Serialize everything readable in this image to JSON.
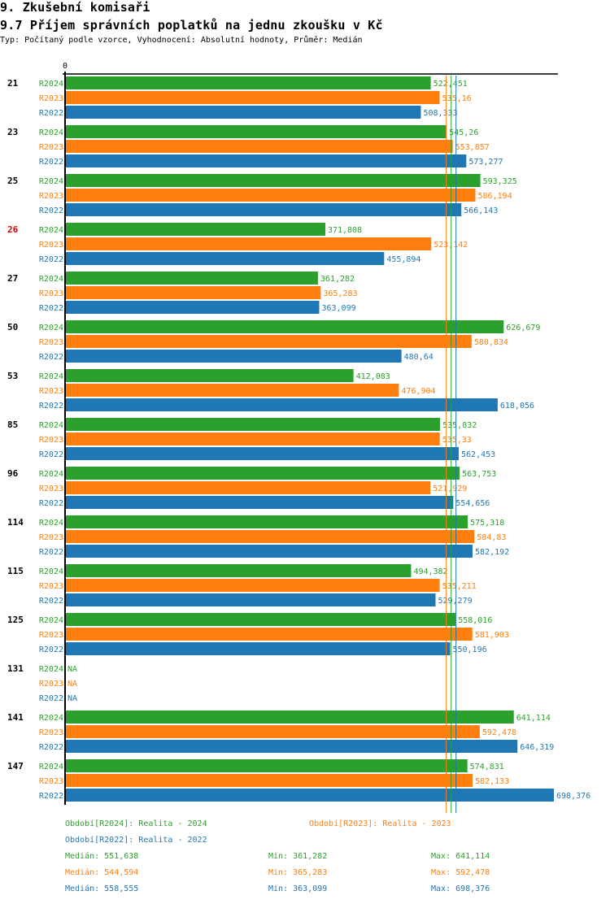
{
  "header": {
    "section": "9. Zkušební komisaři",
    "title": "9.7 Příjem správních poplatků na jednu zkoušku v Kč",
    "subtitle": "Typ: Počítaný podle vzorce, Vyhodnocení: Absolutní hodnoty, Průměr: Medián"
  },
  "colors": {
    "R2024": "#2ca02c",
    "R2023": "#ff7f0e",
    "R2022": "#1f77b4",
    "highlight": "#dd0000",
    "axis": "#000000"
  },
  "chart_data": {
    "type": "bar",
    "orientation": "horizontal",
    "title": "9.7 Příjem správních poplatků na jednu zkoušku v Kč",
    "xlabel": "",
    "ylabel": "",
    "xlim": [
      0,
      698.376
    ],
    "x_tick_labels": [
      "0"
    ],
    "grid": false,
    "series_order": [
      "R2024",
      "R2023",
      "R2022"
    ],
    "categories": [
      "21",
      "23",
      "25",
      "26",
      "27",
      "50",
      "53",
      "85",
      "96",
      "114",
      "115",
      "125",
      "131",
      "141",
      "147"
    ],
    "highlighted_categories": [
      "26"
    ],
    "series": [
      {
        "name": "R2024",
        "labels": [
          "522,451",
          "545,26",
          "593,325",
          "371,808",
          "361,282",
          "626,679",
          "412,083",
          "535,832",
          "563,753",
          "575,318",
          "494,382",
          "558,016",
          "NA",
          "641,114",
          "574,831"
        ],
        "values": [
          522.451,
          545.26,
          593.325,
          371.808,
          361.282,
          626.679,
          412.083,
          535.832,
          563.753,
          575.318,
          494.382,
          558.016,
          null,
          641.114,
          574.831
        ]
      },
      {
        "name": "R2023",
        "labels": [
          "535,16",
          "553,857",
          "586,194",
          "523,142",
          "365,283",
          "580,834",
          "476,904",
          "535,33",
          "521,929",
          "584,83",
          "535,211",
          "581,903",
          "NA",
          "592,478",
          "582,133"
        ],
        "values": [
          535.16,
          553.857,
          586.194,
          523.142,
          365.283,
          580.834,
          476.904,
          535.33,
          521.929,
          584.83,
          535.211,
          581.903,
          null,
          592.478,
          582.133
        ]
      },
      {
        "name": "R2022",
        "labels": [
          "508,333",
          "573,277",
          "566,143",
          "455,894",
          "363,099",
          "480,64",
          "618,056",
          "562,453",
          "554,656",
          "582,192",
          "529,279",
          "550,196",
          "NA",
          "646,319",
          "698,376"
        ],
        "values": [
          508.333,
          573.277,
          566.143,
          455.894,
          363.099,
          480.64,
          618.056,
          562.453,
          554.656,
          582.192,
          529.279,
          550.196,
          null,
          646.319,
          698.376
        ]
      }
    ],
    "median_lines": [
      {
        "series": "R2023",
        "value": 544.594
      },
      {
        "series": "R2024",
        "value": 551.638
      },
      {
        "series": "R2022",
        "value": 558.555
      }
    ]
  },
  "legend": {
    "periods": [
      {
        "series": "R2024",
        "text": "Období[R2024]: Realita - 2024"
      },
      {
        "series": "R2023",
        "text": "Období[R2023]: Realita - 2023"
      },
      {
        "series": "R2022",
        "text": "Období[R2022]: Realita - 2022"
      }
    ],
    "stats": [
      {
        "series": "R2024",
        "median": "Medián: 551,638",
        "min": "Min: 361,282",
        "max": "Max: 641,114"
      },
      {
        "series": "R2023",
        "median": "Medián: 544,594",
        "min": "Min: 365,283",
        "max": "Max: 592,478"
      },
      {
        "series": "R2022",
        "median": "Medián: 558,555",
        "min": "Min: 363,099",
        "max": "Max: 698,376"
      }
    ]
  }
}
